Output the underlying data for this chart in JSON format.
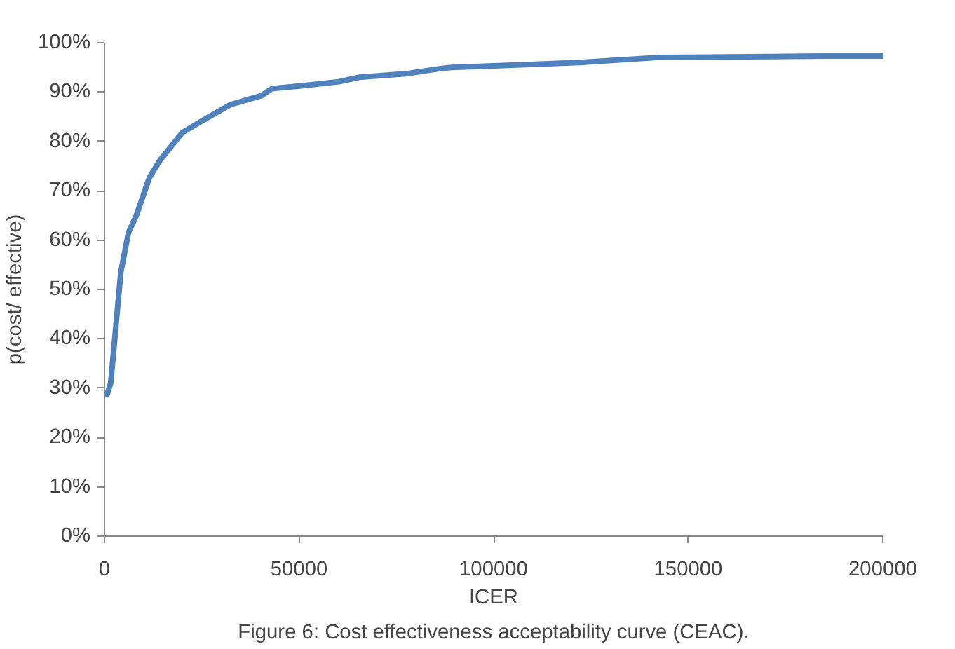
{
  "chart_data": {
    "type": "line",
    "xlabel": "ICER",
    "ylabel": "p(cost/ effective)",
    "annotations": [
      "Figure 6: Cost effectiveness acceptability curve (CEAC)."
    ],
    "x": [
      670,
      1600,
      4200,
      6200,
      8200,
      11500,
      14100,
      20000,
      27300,
      32500,
      40400,
      43000,
      51000,
      60200,
      65500,
      77400,
      86600,
      89200,
      100000,
      122000,
      142000,
      185000,
      200000
    ],
    "series": [
      {
        "color": "#4f81bd",
        "values": [
          28.7,
          31,
          53.5,
          61.6,
          65,
          72.6,
          76,
          81.8,
          85.2,
          87.5,
          89.3,
          90.7,
          91.3,
          92.1,
          93,
          93.7,
          94.8,
          95,
          95.3,
          96,
          97,
          97.3,
          97.3
        ]
      }
    ],
    "xlim": [
      0,
      200000
    ],
    "xticks": [
      0,
      50000,
      100000,
      150000,
      200000
    ],
    "ylim": [
      0,
      100
    ],
    "yticks": [
      {
        "value": 0,
        "label": "0%"
      },
      {
        "value": 10,
        "label": "10%"
      },
      {
        "value": 20,
        "label": "20%"
      },
      {
        "value": 30,
        "label": "30%"
      },
      {
        "value": 40,
        "label": "40%"
      },
      {
        "value": 50,
        "label": "50%"
      },
      {
        "value": 60,
        "label": "60%"
      },
      {
        "value": 70,
        "label": "70%"
      },
      {
        "value": 80,
        "label": "80%"
      },
      {
        "value": 90,
        "label": "90%"
      },
      {
        "value": 100,
        "label": "100%"
      }
    ],
    "grid": false,
    "marker": "none",
    "line_style": "solid"
  }
}
